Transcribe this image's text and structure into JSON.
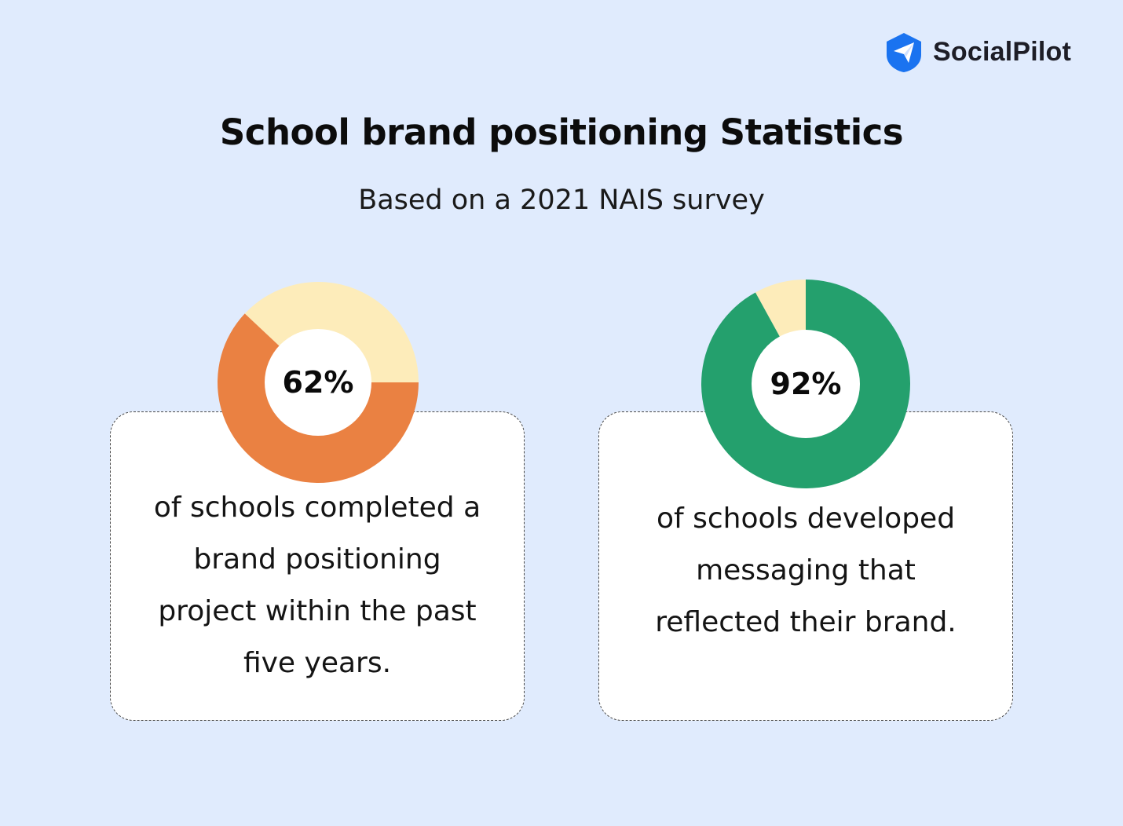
{
  "brand": {
    "name": "SocialPilot",
    "icon": "paper-plane-icon",
    "color": "#1a73f0"
  },
  "header": {
    "title": "School brand positioning Statistics",
    "subtitle": "Based on a 2021 NAIS survey"
  },
  "chart_data": [
    {
      "type": "pie",
      "style": "donut",
      "value_percent": 62,
      "center_label": "62%",
      "caption": "of schools completed a\nbrand positioning\nproject within the past\nfive years.",
      "colors": {
        "value": "#ea8142",
        "remainder": "#fdecba"
      }
    },
    {
      "type": "pie",
      "style": "donut",
      "value_percent": 92,
      "center_label": "92%",
      "caption": "of schools developed\nmessaging that\nreflected their brand.",
      "colors": {
        "value": "#24a06d",
        "remainder": "#fdecba"
      }
    }
  ]
}
